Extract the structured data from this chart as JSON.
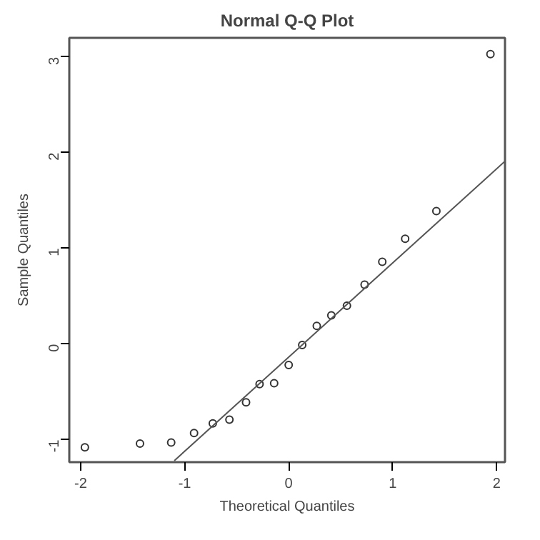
{
  "chart_data": {
    "type": "scatter",
    "title": "Normal Q-Q Plot",
    "xlabel": "Theoretical Quantiles",
    "ylabel": "Sample Quantiles",
    "xlim": [
      -2.11,
      2.08
    ],
    "ylim": [
      -1.235,
      3.2
    ],
    "xticks": [
      -2,
      -1,
      0,
      1,
      2
    ],
    "yticks": [
      -1,
      0,
      1,
      2,
      3
    ],
    "grid": false,
    "series": [
      {
        "marker": "circle",
        "color": "#333333",
        "x": [
          -1.96,
          -1.43,
          -1.13,
          -0.91,
          -0.73,
          -0.57,
          -0.41,
          -0.28,
          -0.14,
          0.0,
          0.13,
          0.27,
          0.41,
          0.56,
          0.73,
          0.9,
          1.12,
          1.42,
          1.94
        ],
        "values": [
          -1.08,
          -1.04,
          -1.03,
          -0.93,
          -0.83,
          -0.79,
          -0.61,
          -0.42,
          -0.41,
          -0.22,
          -0.01,
          0.19,
          0.3,
          0.4,
          0.62,
          0.86,
          1.1,
          1.39,
          3.03
        ]
      },
      {
        "type": "line",
        "marker": "none",
        "color": "#555555",
        "line_style": "solid",
        "x": [
          -1.1,
          2.08
        ],
        "values": [
          -1.22,
          1.91
        ]
      }
    ]
  }
}
